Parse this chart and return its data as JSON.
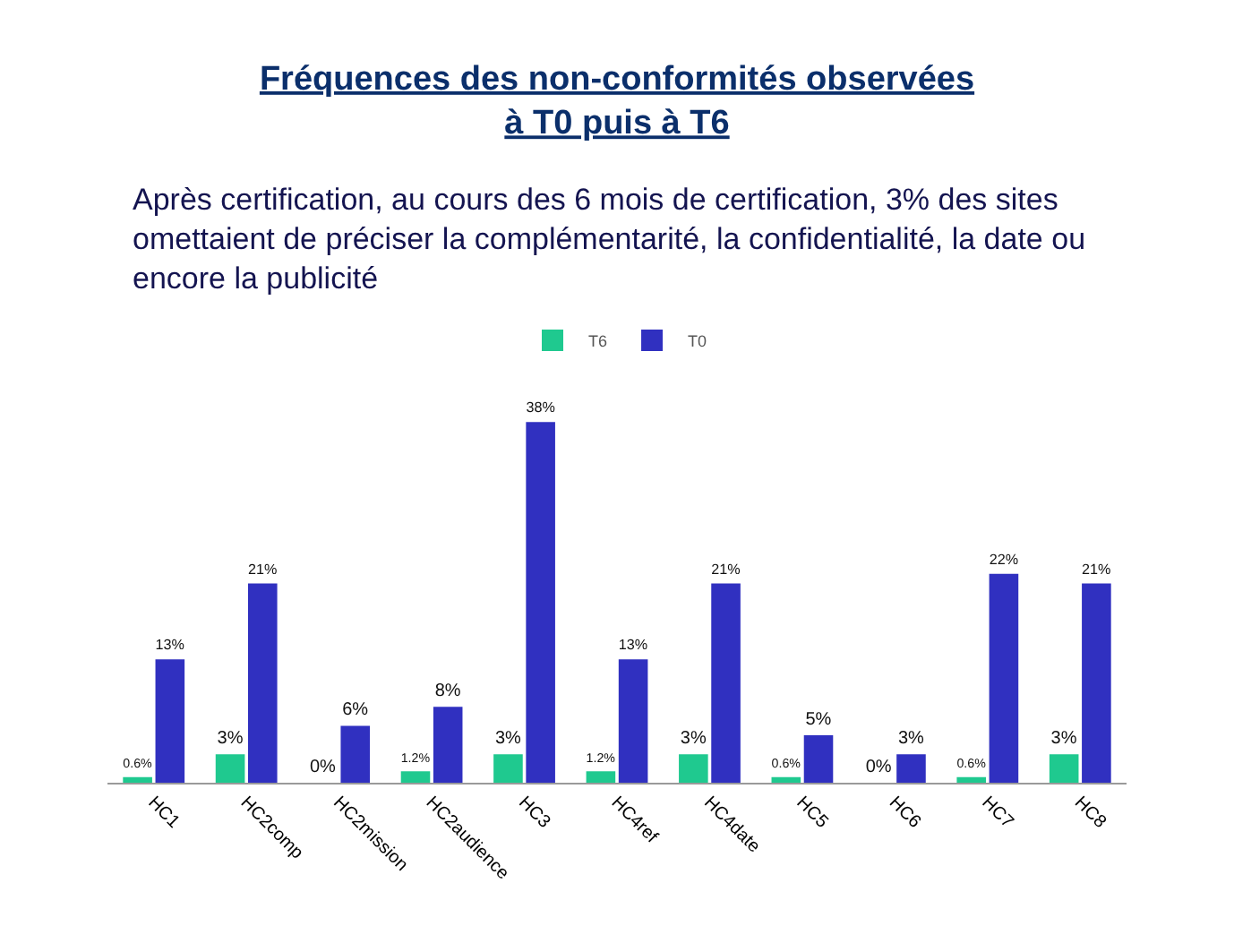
{
  "chart_data": {
    "type": "bar",
    "title": "Fréquences des non-conformités observées\nà T0 puis à T6",
    "subtitle": "Après certification, au cours des 6 mois de certification, 3% des sites\nomettaient de préciser la complémentarité, la confidentialité, la date ou\nencore la publicité",
    "categories": [
      "HC1",
      "HC2comp",
      "HC2mission",
      "HC2audience",
      "HC3",
      "HC4ref",
      "HC4date",
      "HC5",
      "HC6",
      "HC7",
      "HC8"
    ],
    "series": [
      {
        "name": "T6",
        "color": "#1fc98f",
        "values": [
          0.6,
          3,
          0,
          1.2,
          3,
          1.2,
          3,
          0.6,
          0,
          0.6,
          3
        ],
        "value_labels": [
          "0.6%",
          "3%",
          "0%",
          "1.2%",
          "3%",
          "1.2%",
          "3%",
          "0.6%",
          "0%",
          "0.6%",
          "3%"
        ]
      },
      {
        "name": "T0",
        "color": "#3030c0",
        "values": [
          13,
          21,
          6,
          8,
          38,
          13,
          21,
          5,
          3,
          22,
          21
        ],
        "value_labels": [
          "13%",
          "21%",
          "6%",
          "8%",
          "38%",
          "13%",
          "21%",
          "5%",
          "3%",
          "22%",
          "21%"
        ]
      }
    ],
    "legend": "top"
  }
}
